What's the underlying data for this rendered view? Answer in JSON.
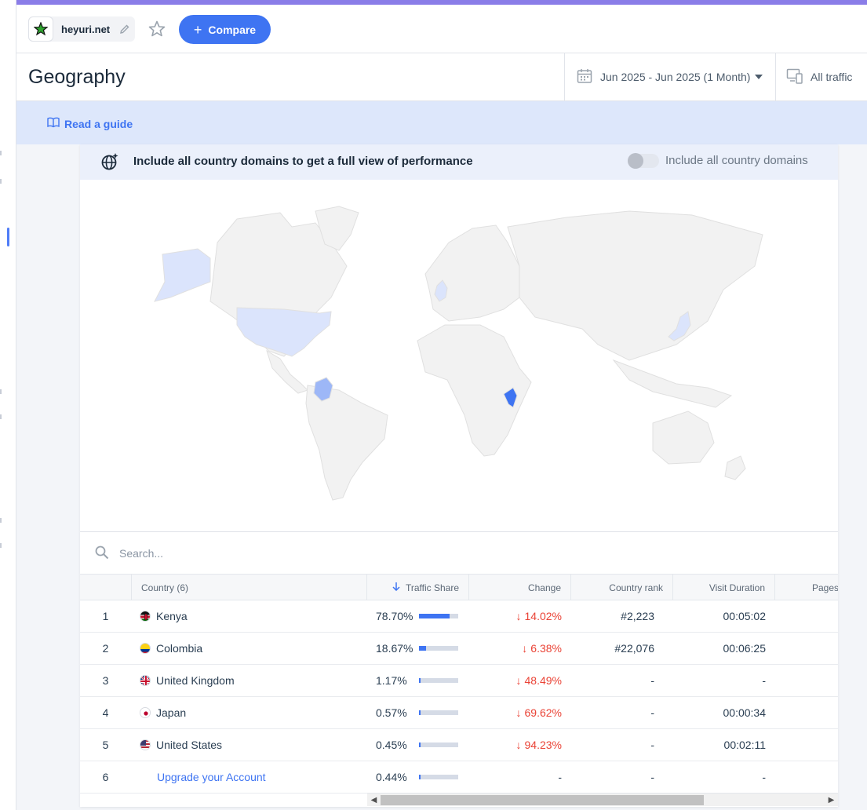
{
  "site": {
    "name": "heyuri.net"
  },
  "toolbar": {
    "compare_label": "Compare"
  },
  "page": {
    "title": "Geography"
  },
  "date_range": "Jun 2025 - Jun 2025 (1 Month)",
  "traffic_filter": "All traffic",
  "guide": {
    "label": "Read a guide"
  },
  "banner": {
    "message": "Include all country domains to get a full view of performance",
    "toggle_label": "Include all country domains",
    "toggle_on": false
  },
  "search": {
    "placeholder": "Search..."
  },
  "table": {
    "headers": {
      "country": "Country (6)",
      "share": "Traffic Share",
      "change": "Change",
      "rank": "Country rank",
      "duration": "Visit Duration",
      "pages": "Pages"
    },
    "rows": [
      {
        "num": "1",
        "country": "Kenya",
        "flag": "kenya",
        "share": "78.70%",
        "share_value": 0.787,
        "change": "14.02%",
        "change_dir": "down",
        "rank": "#2,223",
        "duration": "00:05:02"
      },
      {
        "num": "2",
        "country": "Colombia",
        "flag": "colombia",
        "share": "18.67%",
        "share_value": 0.1867,
        "change": "6.38%",
        "change_dir": "down",
        "rank": "#22,076",
        "duration": "00:06:25"
      },
      {
        "num": "3",
        "country": "United Kingdom",
        "flag": "uk",
        "share": "1.17%",
        "share_value": 0.0117,
        "change": "48.49%",
        "change_dir": "down",
        "rank": "-",
        "duration": "-"
      },
      {
        "num": "4",
        "country": "Japan",
        "flag": "japan",
        "share": "0.57%",
        "share_value": 0.0057,
        "change": "69.62%",
        "change_dir": "down",
        "rank": "-",
        "duration": "00:00:34"
      },
      {
        "num": "5",
        "country": "United States",
        "flag": "us",
        "share": "0.45%",
        "share_value": 0.0045,
        "change": "94.23%",
        "change_dir": "down",
        "rank": "-",
        "duration": "00:02:11"
      },
      {
        "num": "6",
        "country": "Upgrade your Account",
        "flag": "",
        "share": "0.44%",
        "share_value": 0.0044,
        "change": "-",
        "change_dir": "",
        "rank": "-",
        "duration": "-"
      }
    ]
  },
  "colors": {
    "accent": "#3e74f2",
    "negative": "#ea4336",
    "map_high": "#3e74f2",
    "map_mid": "#9db7f7",
    "map_low": "#dbe4fc",
    "map_none": "#f2f2f2"
  },
  "icons": [
    "favicon-star-icon",
    "edit-pencil-icon",
    "star-icon",
    "plus-icon",
    "calendar-icon",
    "devices-icon",
    "book-icon",
    "globe-sparkle-icon",
    "search-icon",
    "sort-down-arrow-icon"
  ]
}
